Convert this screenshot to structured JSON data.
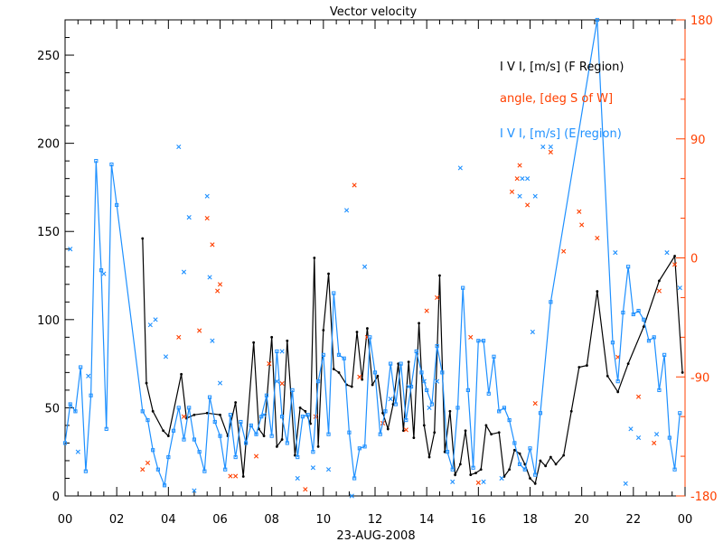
{
  "chart_data": {
    "type": "line",
    "title": "Vector velocity",
    "xlabel": "23-AUG-2008",
    "x_ticks": [
      "00",
      "02",
      "04",
      "06",
      "08",
      "10",
      "12",
      "14",
      "16",
      "18",
      "20",
      "22",
      "00"
    ],
    "xlim": [
      0,
      24
    ],
    "ylim": [
      0,
      270
    ],
    "y_ticks": [
      0,
      50,
      100,
      150,
      200,
      250
    ],
    "y2lim": [
      -180,
      180
    ],
    "y2_ticks": [
      -180,
      -90,
      0,
      90,
      180
    ],
    "colors": {
      "f_region": "#000000",
      "angle": "#ff4000",
      "e_region": "#1e90ff",
      "axis_right": "#ff4000",
      "axis": "#000000"
    },
    "legend_position": "top-right",
    "series": [
      {
        "name": "I V I, [m/s] (F Region)",
        "axis": "left",
        "style": "line-dots",
        "x": [
          3.0,
          3.15,
          3.4,
          3.8,
          4.0,
          4.5,
          4.7,
          5.0,
          5.5,
          6.0,
          6.3,
          6.6,
          6.9,
          7.0,
          7.3,
          7.5,
          7.7,
          8.0,
          8.2,
          8.4,
          8.6,
          8.9,
          9.1,
          9.3,
          9.5,
          9.65,
          9.8,
          10.0,
          10.2,
          10.4,
          10.6,
          10.9,
          11.1,
          11.3,
          11.5,
          11.7,
          11.9,
          12.1,
          12.3,
          12.5,
          12.7,
          12.9,
          13.1,
          13.3,
          13.5,
          13.7,
          13.9,
          14.1,
          14.3,
          14.5,
          14.7,
          14.9,
          15.1,
          15.3,
          15.5,
          15.7,
          15.9,
          16.1,
          16.3,
          16.5,
          16.8,
          17.0,
          17.2,
          17.4,
          17.6,
          17.8,
          18.0,
          18.2,
          18.4,
          18.6,
          18.8,
          19.0,
          19.3,
          19.6,
          19.9,
          20.2,
          20.6,
          21.0,
          21.4,
          21.8,
          22.4,
          23.0,
          23.6,
          23.9
        ],
        "values": [
          146,
          64,
          48,
          37,
          34,
          69,
          44,
          46,
          47,
          46,
          34,
          53,
          11,
          30,
          87,
          38,
          34,
          90,
          28,
          32,
          88,
          23,
          50,
          48,
          41,
          135,
          28,
          94,
          126,
          72,
          70,
          63,
          62,
          93,
          66,
          95,
          63,
          68,
          47,
          38,
          52,
          75,
          37,
          76,
          33,
          98,
          40,
          22,
          36,
          125,
          25,
          48,
          12,
          18,
          37,
          12,
          13,
          15,
          40,
          35,
          36,
          11,
          15,
          26,
          24,
          18,
          10,
          7,
          20,
          17,
          22,
          18,
          23,
          48,
          73,
          74,
          116,
          68,
          59,
          75,
          96,
          122,
          136,
          70
        ]
      },
      {
        "name": "angle, [deg S of W]",
        "axis": "right",
        "style": "markers",
        "x": [
          3.0,
          3.2,
          4.4,
          4.6,
          5.2,
          5.5,
          5.7,
          5.9,
          6.0,
          6.4,
          6.6,
          7.4,
          7.9,
          8.4,
          9.3,
          9.7,
          11.2,
          11.4,
          11.7,
          12.3,
          13.2,
          14.0,
          14.4,
          15.7,
          16.0,
          17.3,
          17.5,
          17.6,
          17.9,
          18.2,
          18.8,
          19.3,
          19.9,
          20.0,
          20.6,
          21.4,
          22.2,
          22.8,
          23.0,
          23.6
        ],
        "values": [
          -160,
          -155,
          -60,
          -120,
          -55,
          30,
          10,
          -25,
          -20,
          -165,
          -165,
          -150,
          -80,
          -95,
          -175,
          -120,
          55,
          -90,
          -60,
          -125,
          -130,
          -40,
          -30,
          -60,
          -170,
          50,
          60,
          70,
          40,
          -110,
          80,
          5,
          35,
          25,
          15,
          -75,
          -105,
          -140,
          -25,
          -5
        ]
      },
      {
        "name": "I V I, [m/s] (E region)",
        "axis": "left",
        "style": "line-squares",
        "x": [
          0.0,
          0.2,
          0.4,
          0.6,
          0.8,
          1.0,
          1.2,
          1.4,
          1.6,
          1.8,
          2.0,
          3.0,
          3.2,
          3.4,
          3.6,
          3.85,
          4.0,
          4.2,
          4.4,
          4.6,
          4.8,
          5.0,
          5.2,
          5.4,
          5.6,
          5.8,
          6.0,
          6.2,
          6.4,
          6.6,
          6.8,
          7.0,
          7.2,
          7.4,
          7.6,
          7.8,
          8.0,
          8.2,
          8.4,
          8.6,
          8.8,
          9.0,
          9.2,
          9.4,
          9.6,
          9.8,
          10.0,
          10.2,
          10.4,
          10.6,
          10.8,
          11.0,
          11.2,
          11.4,
          11.6,
          11.8,
          12.0,
          12.2,
          12.4,
          12.6,
          12.8,
          13.0,
          13.2,
          13.4,
          13.6,
          13.8,
          14.0,
          14.2,
          14.4,
          14.6,
          14.8,
          15.0,
          15.2,
          15.4,
          15.6,
          15.8,
          16.0,
          16.2,
          16.4,
          16.6,
          16.8,
          17.0,
          17.2,
          17.4,
          17.6,
          17.8,
          18.0,
          18.2,
          18.4,
          18.8,
          20.6,
          21.2,
          21.4,
          21.6,
          21.8,
          22.0,
          22.2,
          22.4,
          22.6,
          22.8,
          23.0,
          23.2,
          23.4,
          23.6,
          23.8
        ],
        "values": [
          30,
          52,
          48,
          73,
          14,
          57,
          190,
          128,
          38,
          188,
          165,
          48,
          43,
          26,
          15,
          6,
          22,
          37,
          50,
          32,
          50,
          32,
          25,
          14,
          56,
          42,
          34,
          15,
          46,
          22,
          42,
          30,
          40,
          35,
          45,
          57,
          34,
          82,
          45,
          30,
          60,
          22,
          45,
          46,
          25,
          65,
          80,
          35,
          115,
          80,
          78,
          36,
          10,
          27,
          28,
          90,
          70,
          35,
          48,
          75,
          52,
          75,
          43,
          62,
          82,
          70,
          60,
          52,
          85,
          70,
          25,
          15,
          50,
          118,
          60,
          16,
          88,
          88,
          58,
          79,
          48,
          50,
          43,
          30,
          18,
          15,
          27,
          12,
          47,
          110,
          270,
          87,
          65,
          104,
          130,
          103,
          105,
          100,
          88,
          90,
          60,
          80,
          33,
          15,
          47
        ]
      },
      {
        "name": "",
        "axis": "left",
        "style": "markers-e",
        "x": [
          0.2,
          0.5,
          0.9,
          1.5,
          3.3,
          3.5,
          3.9,
          4.4,
          4.6,
          4.8,
          5.0,
          5.5,
          5.6,
          5.7,
          6.0,
          7.7,
          8.2,
          8.4,
          9.0,
          9.6,
          10.2,
          10.9,
          11.1,
          11.6,
          12.6,
          13.3,
          13.9,
          14.1,
          14.4,
          15.0,
          15.3,
          16.2,
          16.9,
          17.6,
          17.7,
          17.9,
          18.1,
          18.2,
          18.5,
          18.8,
          21.3,
          21.7,
          21.9,
          22.2,
          22.9,
          23.3,
          23.8
        ],
        "values": [
          140,
          25,
          68,
          126,
          97,
          100,
          79,
          198,
          127,
          158,
          3,
          170,
          124,
          88,
          64,
          46,
          65,
          82,
          10,
          16,
          15,
          162,
          0,
          130,
          55,
          62,
          65,
          50,
          65,
          8,
          186,
          8,
          10,
          170,
          180,
          180,
          93,
          170,
          198,
          198,
          138,
          7,
          38,
          33,
          35,
          138,
          118
        ]
      }
    ]
  }
}
